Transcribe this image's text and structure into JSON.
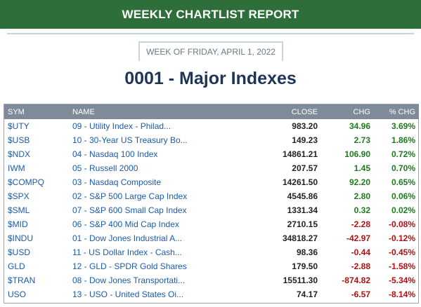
{
  "banner": {
    "title": "WEEKLY CHARTLIST REPORT"
  },
  "week_label": "WEEK OF FRIDAY, APRIL 1, 2022",
  "page_title": "0001 - Major Indexes",
  "colors": {
    "banner": "#2d6e3a",
    "positive": "#1f7a1f",
    "negative": "#b01010",
    "link": "#1e5aa6",
    "header": "#7f8b99"
  },
  "table": {
    "headers": {
      "sym": "SYM",
      "name": "NAME",
      "close": "CLOSE",
      "chg": "CHG",
      "pct": "% CHG"
    },
    "rows": [
      {
        "sym": "$UTY",
        "name": "09 - Utility Index - Philad...",
        "close": "983.20",
        "chg": "34.96",
        "pct": "3.69%",
        "dir": "pos"
      },
      {
        "sym": "$USB",
        "name": "10 - 30-Year US Treasury Bo...",
        "close": "149.23",
        "chg": "2.73",
        "pct": "1.86%",
        "dir": "pos"
      },
      {
        "sym": "$NDX",
        "name": "04 - Nasdaq 100 Index",
        "close": "14861.21",
        "chg": "106.90",
        "pct": "0.72%",
        "dir": "pos"
      },
      {
        "sym": "IWM",
        "name": "05 - Russell 2000",
        "close": "207.57",
        "chg": "1.45",
        "pct": "0.70%",
        "dir": "pos"
      },
      {
        "sym": "$COMPQ",
        "name": "03 - Nasdaq Composite",
        "close": "14261.50",
        "chg": "92.20",
        "pct": "0.65%",
        "dir": "pos"
      },
      {
        "sym": "$SPX",
        "name": "02 - S&P 500 Large Cap Index",
        "close": "4545.86",
        "chg": "2.80",
        "pct": "0.06%",
        "dir": "pos"
      },
      {
        "sym": "$SML",
        "name": "07 - S&P 600 Small Cap Index",
        "close": "1331.34",
        "chg": "0.32",
        "pct": "0.02%",
        "dir": "pos"
      },
      {
        "sym": "$MID",
        "name": "06 - S&P 400 Mid Cap Index",
        "close": "2710.15",
        "chg": "-2.28",
        "pct": "-0.08%",
        "dir": "neg"
      },
      {
        "sym": "$INDU",
        "name": "01 - Dow Jones Industrial A...",
        "close": "34818.27",
        "chg": "-42.97",
        "pct": "-0.12%",
        "dir": "neg"
      },
      {
        "sym": "$USD",
        "name": "11 - US Dollar Index - Cash...",
        "close": "98.36",
        "chg": "-0.44",
        "pct": "-0.45%",
        "dir": "neg"
      },
      {
        "sym": "GLD",
        "name": "12 - GLD - SPDR Gold Shares",
        "close": "179.50",
        "chg": "-2.88",
        "pct": "-1.58%",
        "dir": "neg"
      },
      {
        "sym": "$TRAN",
        "name": "08 - Dow Jones Transportati...",
        "close": "15511.30",
        "chg": "-874.82",
        "pct": "-5.34%",
        "dir": "neg"
      },
      {
        "sym": "USO",
        "name": "13 - USO - United States Oi...",
        "close": "74.17",
        "chg": "-6.57",
        "pct": "-8.14%",
        "dir": "neg"
      }
    ]
  }
}
